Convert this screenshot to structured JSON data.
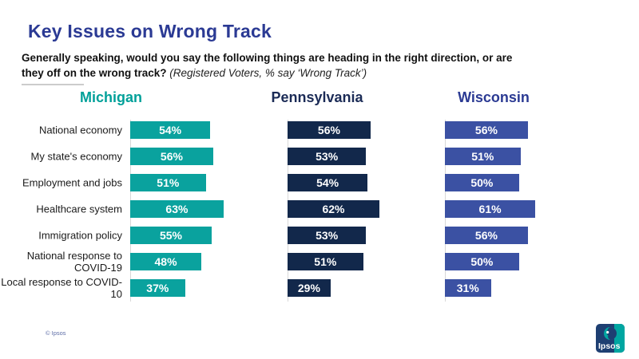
{
  "header": {
    "title": "Key Issues on Wrong Track",
    "question_line1": "Generally speaking, would you say the following things are heading in the right direction, or are",
    "question_line2_bold": "they off on the wrong track?",
    "question_line2_italic": " (Registered Voters, % say ‘Wrong Track’)"
  },
  "chart_data": {
    "type": "bar",
    "orientation": "horizontal",
    "value_suffix": "%",
    "xlim": [
      0,
      100
    ],
    "grid": false,
    "data_labels": "inside-center",
    "categories": [
      "National economy",
      "My state's economy",
      "Employment and jobs",
      "Healthcare system",
      "Immigration policy",
      "National response to COVID-19",
      "Local response to COVID-10"
    ],
    "series": [
      {
        "name": "Michigan",
        "bar_color": "#0AA29E",
        "label_color": "#00A099",
        "values": [
          54,
          56,
          51,
          63,
          55,
          48,
          37
        ]
      },
      {
        "name": "Pennsylvania",
        "bar_color": "#12284B",
        "label_color": "#1B2B56",
        "values": [
          56,
          53,
          54,
          62,
          53,
          51,
          29
        ]
      },
      {
        "name": "Wisconsin",
        "bar_color": "#3B51A3",
        "label_color": "#2B3A93",
        "values": [
          56,
          51,
          50,
          61,
          56,
          50,
          31
        ]
      }
    ]
  },
  "footer": {
    "copyright": "© Ipsos",
    "logo_text": "Ipsos",
    "logo_navy": "#1E3F72",
    "logo_teal": "#00A6A1"
  }
}
